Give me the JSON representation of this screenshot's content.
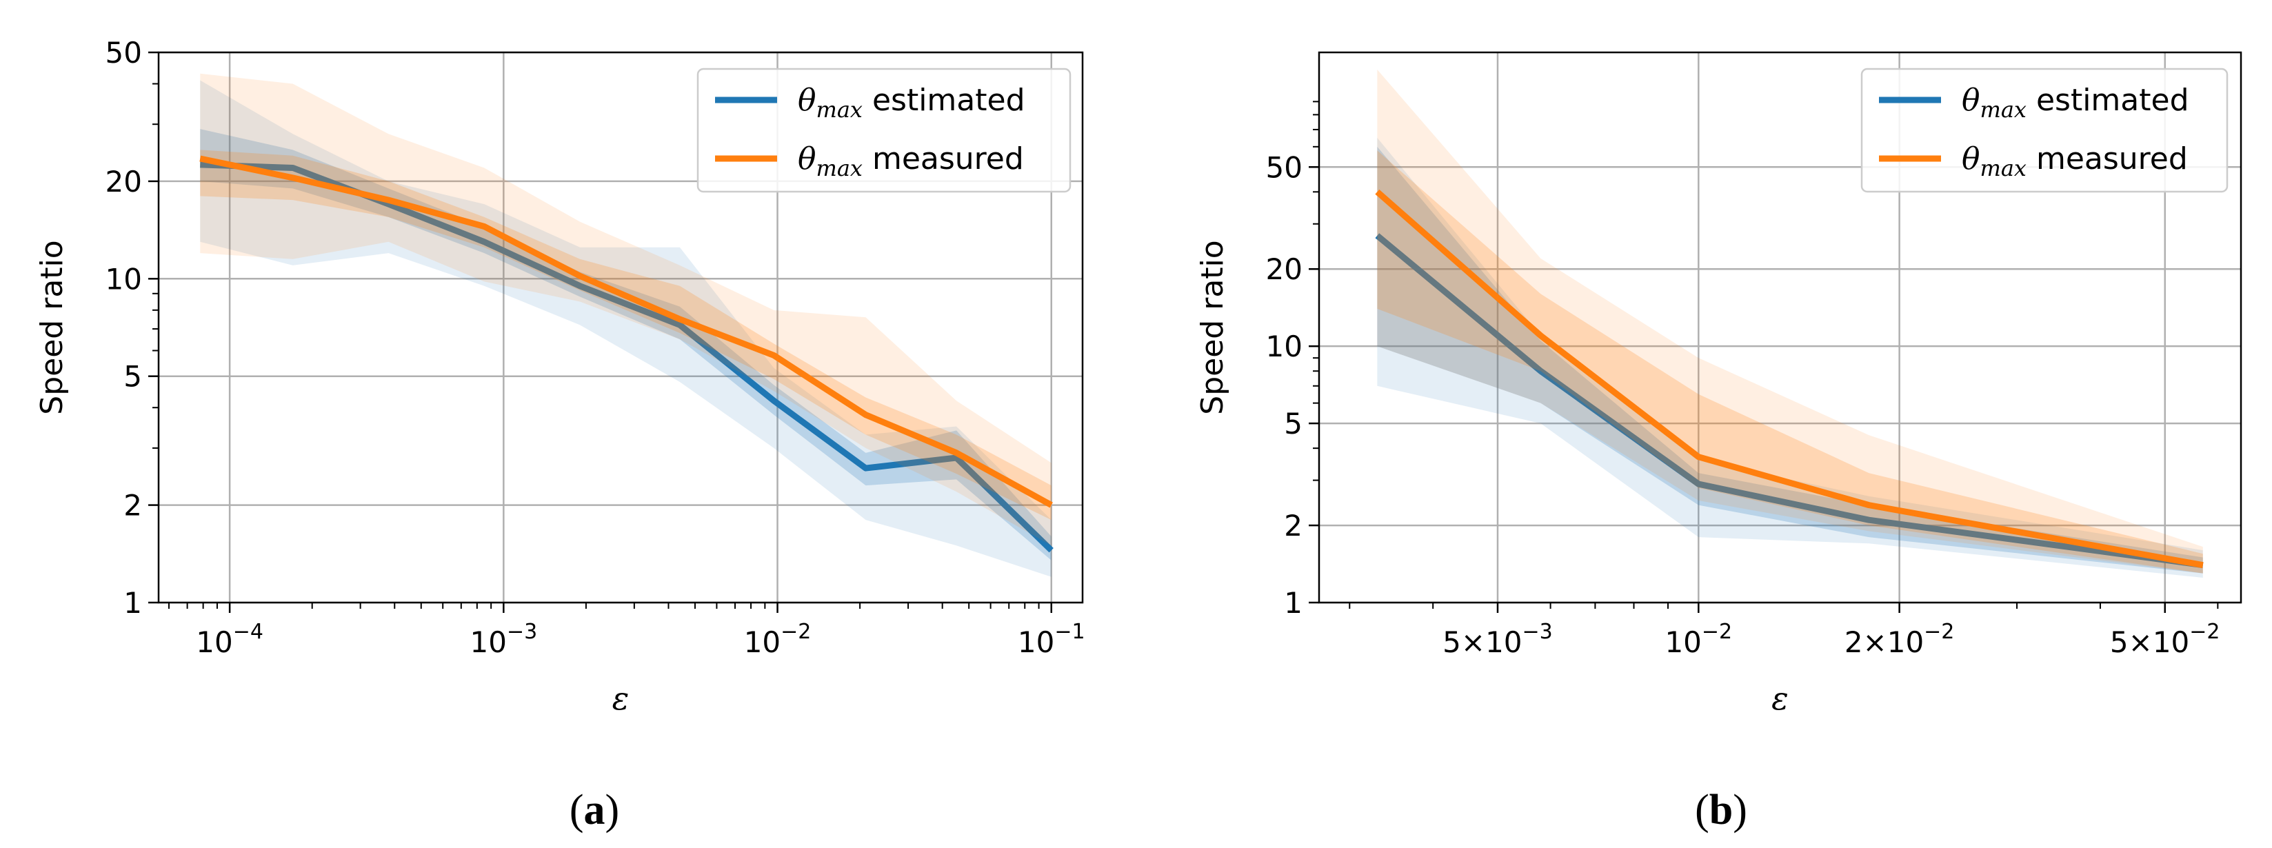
{
  "chart_data": [
    {
      "id": "a",
      "type": "line",
      "caption": "a",
      "xlabel": "ε",
      "ylabel": "Speed ratio",
      "xscale": "log",
      "yscale": "log",
      "xlim": [
        5.5e-05,
        0.13
      ],
      "ylim": [
        1,
        50
      ],
      "grid": true,
      "legend_position": "top-right",
      "xticks": [
        {
          "value": 0.0001,
          "base": "10",
          "exp": "−4"
        },
        {
          "value": 0.001,
          "base": "10",
          "exp": "−3"
        },
        {
          "value": 0.01,
          "base": "10",
          "exp": "−2"
        },
        {
          "value": 0.1,
          "base": "10",
          "exp": "−1"
        }
      ],
      "yticks": [
        {
          "value": 1,
          "label": "1"
        },
        {
          "value": 2,
          "label": "2"
        },
        {
          "value": 5,
          "label": "5"
        },
        {
          "value": 10,
          "label": "10"
        },
        {
          "value": 20,
          "label": "20"
        },
        {
          "value": 50,
          "label": "50"
        }
      ],
      "x": [
        7.8e-05,
        0.00017,
        0.00038,
        0.00085,
        0.0019,
        0.0044,
        0.0097,
        0.021,
        0.045,
        0.1
      ],
      "series": [
        {
          "name": "θmax estimated",
          "legend_symbol": "θ",
          "legend_sub": "max",
          "legend_rest": " estimated",
          "color": "#1f77b4",
          "values": [
            22.5,
            22,
            17,
            13,
            9.5,
            7.2,
            4.2,
            2.6,
            2.8,
            1.45
          ],
          "band_inner": {
            "low": [
              20,
              19,
              15.5,
              12,
              8.8,
              6.5,
              3.8,
              2.3,
              2.4,
              1.35
            ],
            "high": [
              29,
              25,
              19,
              14.5,
              10.5,
              8.2,
              4.7,
              2.9,
              3.4,
              1.6
            ]
          },
          "band_outer": {
            "low": [
              13,
              11,
              12,
              9.5,
              7.2,
              4.8,
              3.0,
              1.8,
              1.5,
              1.2
            ],
            "high": [
              41,
              28,
              20,
              17,
              12.5,
              12.5,
              5.3,
              3.3,
              3.5,
              1.8
            ]
          }
        },
        {
          "name": "θmax measured",
          "legend_symbol": "θ",
          "legend_sub": "max",
          "legend_rest": " measured",
          "color": "#ff7f0e",
          "values": [
            23.5,
            20.5,
            17.5,
            14.5,
            10.2,
            7.5,
            5.8,
            3.8,
            2.9,
            2
          ],
          "band_inner": {
            "low": [
              18,
              17.5,
              15.5,
              12.5,
              9.2,
              6.8,
              4.9,
              3.3,
              2.5,
              1.8
            ],
            "high": [
              25,
              24,
              20,
              15.5,
              11.5,
              9.5,
              6.3,
              4.3,
              3.3,
              2.3
            ]
          },
          "band_outer": {
            "low": [
              12,
              11.5,
              13,
              9.8,
              8.5,
              6.5,
              4.5,
              3.0,
              2.2,
              1.5
            ],
            "high": [
              43,
              40,
              28,
              22,
              15,
              11,
              8,
              7.6,
              4.2,
              2.7
            ]
          }
        }
      ]
    },
    {
      "id": "b",
      "type": "line",
      "caption": "b",
      "xlabel": "ε",
      "ylabel": "Speed ratio",
      "xscale": "log",
      "yscale": "log",
      "xlim": [
        0.0027,
        0.065
      ],
      "ylim": [
        1,
        140
      ],
      "grid": true,
      "legend_position": "top-right",
      "xticks": [
        {
          "value": 0.005,
          "base": "5×10",
          "exp": "−3"
        },
        {
          "value": 0.01,
          "base": "10",
          "exp": "−2"
        },
        {
          "value": 0.02,
          "base": "2×10",
          "exp": "−2"
        },
        {
          "value": 0.05,
          "base": "5×10",
          "exp": "−2"
        }
      ],
      "yticks": [
        {
          "value": 1,
          "label": "1"
        },
        {
          "value": 2,
          "label": "2"
        },
        {
          "value": 5,
          "label": "5"
        },
        {
          "value": 10,
          "label": "10"
        },
        {
          "value": 20,
          "label": "20"
        },
        {
          "value": 50,
          "label": "50"
        }
      ],
      "x": [
        0.0033,
        0.0058,
        0.01,
        0.018,
        0.057
      ],
      "series": [
        {
          "name": "θmax estimated",
          "legend_symbol": "θ",
          "legend_sub": "max",
          "legend_rest": " estimated",
          "color": "#1f77b4",
          "values": [
            27,
            8,
            2.9,
            2.1,
            1.4
          ],
          "band_inner": {
            "low": [
              10,
              6,
              2.4,
              1.8,
              1.3
            ],
            "high": [
              60,
              10.5,
              3.2,
              2.4,
              1.5
            ]
          },
          "band_outer": {
            "low": [
              7,
              5,
              1.8,
              1.7,
              1.25
            ],
            "high": [
              65,
              11,
              3.6,
              2.6,
              1.6
            ]
          }
        },
        {
          "name": "θmax measured",
          "legend_symbol": "θ",
          "legend_sub": "max",
          "legend_rest": " measured",
          "color": "#ff7f0e",
          "values": [
            40,
            11,
            3.7,
            2.4,
            1.4
          ],
          "band_inner": {
            "low": [
              14,
              8,
              2.8,
              2.0,
              1.3
            ],
            "high": [
              58,
              16,
              6.5,
              3.2,
              1.55
            ]
          },
          "band_outer": {
            "low": [
              10,
              6,
              2.5,
              1.9,
              1.3
            ],
            "high": [
              120,
              22,
              9,
              4.5,
              1.65
            ]
          }
        }
      ]
    }
  ]
}
